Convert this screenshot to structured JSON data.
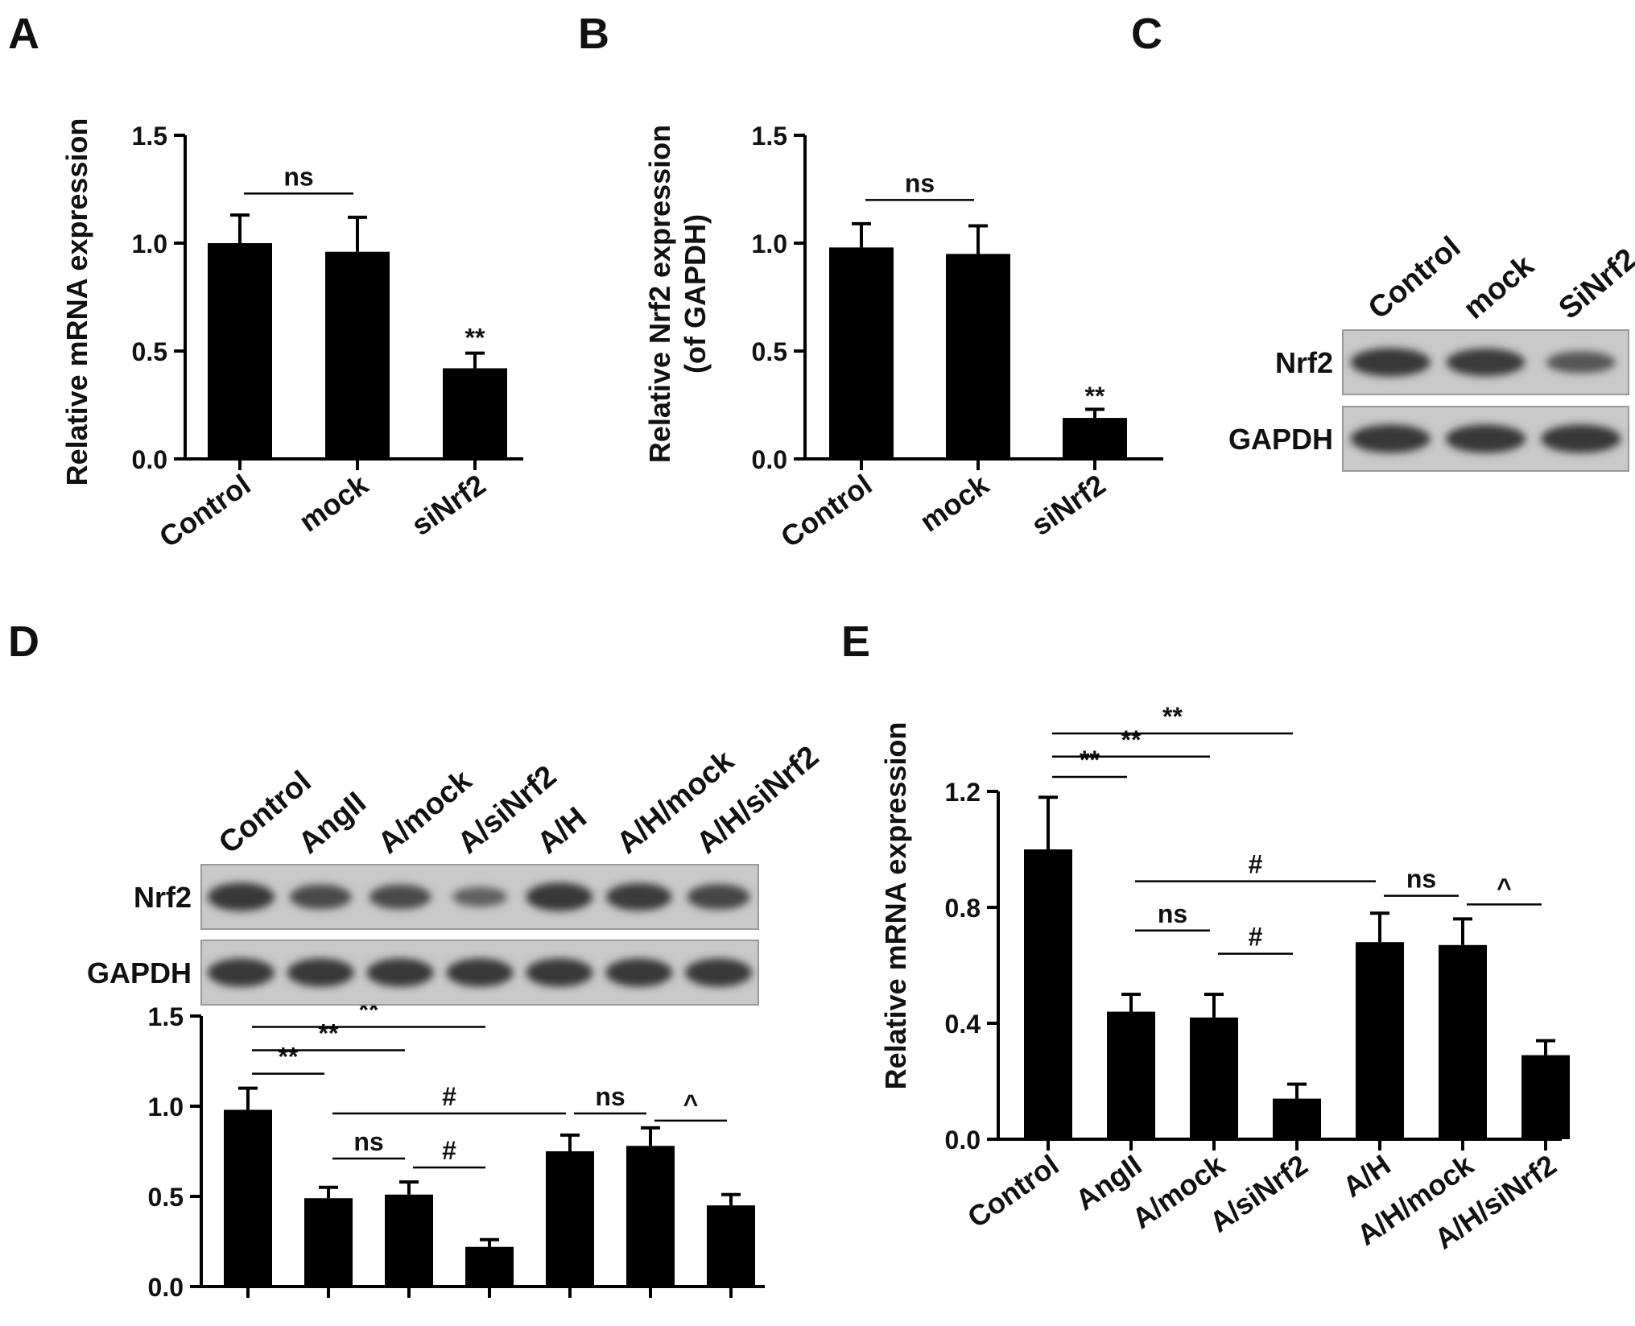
{
  "panels": {
    "A": {
      "label": "A",
      "ylabel": "Relative mRNA expression",
      "yticks": [
        "0.0",
        "0.5",
        "1.0",
        "1.5"
      ],
      "significance": [
        {
          "from": 0,
          "to": 1,
          "text": "ns",
          "level": 1.23
        },
        {
          "bar": 2,
          "text": "**",
          "level": 0.52
        }
      ]
    },
    "B": {
      "label": "B",
      "ylabel": "Relative Nrf2 expression",
      "ylabel2": "(of GAPDH)",
      "yticks": [
        "0.0",
        "0.5",
        "1.0",
        "1.5"
      ],
      "significance": [
        {
          "from": 0,
          "to": 1,
          "text": "ns",
          "level": 1.2
        },
        {
          "bar": 2,
          "text": "**",
          "level": 0.25
        }
      ]
    },
    "C": {
      "label": "C",
      "lanes": [
        "Control",
        "mock",
        "SiNrf2"
      ],
      "rows": [
        "Nrf2",
        "GAPDH"
      ],
      "band_intensity": {
        "Nrf2": [
          1.0,
          0.95,
          0.55
        ],
        "GAPDH": [
          1.0,
          1.0,
          1.0
        ]
      }
    },
    "D": {
      "label": "D",
      "lanes": [
        "Control",
        "AngII",
        "A/mock",
        "A/siNrf2",
        "A/H",
        "A/H/mock",
        "A/H/siNrf2"
      ],
      "rows": [
        "Nrf2",
        "GAPDH"
      ],
      "band_intensity": {
        "Nrf2": [
          1.0,
          0.75,
          0.75,
          0.4,
          1.0,
          0.95,
          0.8
        ],
        "GAPDH": [
          1,
          1,
          1,
          1,
          1,
          1,
          1
        ]
      },
      "yticks": [
        "0.0",
        "0.5",
        "1.0",
        "1.5"
      ],
      "significance": [
        {
          "from": 0,
          "to": 1,
          "text": "**",
          "level": 1.18
        },
        {
          "from": 0,
          "to": 2,
          "text": "**",
          "level": 1.31
        },
        {
          "from": 0,
          "to": 3,
          "text": "**",
          "level": 1.44
        },
        {
          "from": 1,
          "to": 4,
          "text": "#",
          "level": 0.96
        },
        {
          "from": 4,
          "to": 5,
          "text": "ns",
          "level": 0.96
        },
        {
          "from": 1,
          "to": 2,
          "text": "ns",
          "level": 0.71
        },
        {
          "from": 2,
          "to": 3,
          "text": "#",
          "level": 0.66
        },
        {
          "from": 5,
          "to": 6,
          "text": "^",
          "level": 0.92
        }
      ]
    },
    "E": {
      "label": "E",
      "ylabel": "Relative mRNA expression",
      "yticks": [
        "0.0",
        "0.4",
        "0.8",
        "1.2"
      ],
      "significance": [
        {
          "from": 0,
          "to": 1,
          "text": "**",
          "level": 1.25
        },
        {
          "from": 0,
          "to": 2,
          "text": "**",
          "level": 1.32
        },
        {
          "from": 0,
          "to": 3,
          "text": "**",
          "level": 1.4
        },
        {
          "from": 1,
          "to": 4,
          "text": "#",
          "level": 0.89
        },
        {
          "from": 4,
          "to": 5,
          "text": "ns",
          "level": 0.84
        },
        {
          "from": 1,
          "to": 2,
          "text": "ns",
          "level": 0.72
        },
        {
          "from": 2,
          "to": 3,
          "text": "#",
          "level": 0.64
        },
        {
          "from": 5,
          "to": 6,
          "text": "^",
          "level": 0.81
        }
      ]
    }
  },
  "chart_data": [
    {
      "panel": "A",
      "type": "bar",
      "categories": [
        "Control",
        "mock",
        "siNrf2"
      ],
      "values": [
        1.0,
        0.96,
        0.42
      ],
      "errors": [
        0.13,
        0.16,
        0.07
      ],
      "ylabel": "Relative mRNA expression",
      "ylim": [
        0,
        1.5
      ],
      "grid": false
    },
    {
      "panel": "B",
      "type": "bar",
      "categories": [
        "Control",
        "mock",
        "siNrf2"
      ],
      "values": [
        0.98,
        0.95,
        0.19
      ],
      "errors": [
        0.11,
        0.13,
        0.04
      ],
      "ylabel": "Relative Nrf2 expression (of GAPDH)",
      "ylim": [
        0,
        1.5
      ],
      "grid": false
    },
    {
      "panel": "D",
      "type": "bar",
      "categories": [
        "Control",
        "AngII",
        "A/mock",
        "A/siNrf2",
        "A/H",
        "A/H/mock",
        "A/H/siNrf2"
      ],
      "values": [
        0.98,
        0.49,
        0.51,
        0.22,
        0.75,
        0.78,
        0.45
      ],
      "errors": [
        0.12,
        0.06,
        0.07,
        0.04,
        0.09,
        0.1,
        0.06
      ],
      "ylim": [
        0,
        1.5
      ],
      "grid": false
    },
    {
      "panel": "E",
      "type": "bar",
      "categories": [
        "Control",
        "AngII",
        "A/mock",
        "A/siNrf2",
        "A/H",
        "A/H/mock",
        "A/H/siNrf2"
      ],
      "values": [
        1.0,
        0.44,
        0.42,
        0.14,
        0.68,
        0.67,
        0.29
      ],
      "errors": [
        0.18,
        0.06,
        0.08,
        0.05,
        0.1,
        0.09,
        0.05
      ],
      "ylabel": "Relative mRNA expression",
      "ylim": [
        0,
        1.2
      ],
      "grid": false
    }
  ]
}
